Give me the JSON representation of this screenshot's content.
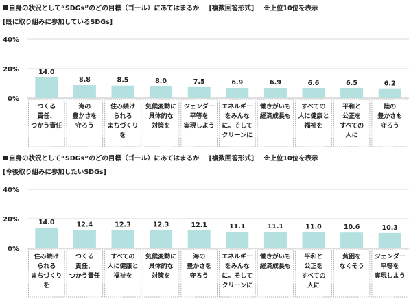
{
  "colors": {
    "bar": "#b5e0e0",
    "grid": "#d9d9d9",
    "box": "#9a9a9a"
  },
  "chart_data": [
    {
      "type": "bar",
      "title": "自身の状況として“SDGs”のどの目標（ゴール）にあてはまるか",
      "format": "[複数回答形式]",
      "note": "※上位10位を表示",
      "subtitle": "[既に取り組みに参加しているSDGs]",
      "ylim": [
        0,
        40
      ],
      "yticks": [
        "40%",
        "20%",
        "0%"
      ],
      "categories": [
        [
          "つくる",
          "責任、",
          "つかう責任"
        ],
        [
          "海の",
          "豊かさを",
          "守ろう"
        ],
        [
          "住み続け",
          "られる",
          "まちづくり",
          "を"
        ],
        [
          "気候変動に",
          "具体的な",
          "対策を"
        ],
        [
          "ジェンダー",
          "平等を",
          "実現しよう"
        ],
        [
          "エネルギー",
          "をみんな",
          "に。そして",
          "クリーンに"
        ],
        [
          "働きがいも",
          "経済成長も"
        ],
        [
          "すべての",
          "人に健康と",
          "福祉を"
        ],
        [
          "平和と",
          "公正を",
          "すべての",
          "人に"
        ],
        [
          "陸の",
          "豊かさも",
          "守ろう"
        ]
      ],
      "values": [
        14.0,
        8.8,
        8.5,
        8.0,
        7.5,
        6.9,
        6.9,
        6.6,
        6.5,
        6.2
      ],
      "labels": [
        "14.0",
        "8.8",
        "8.5",
        "8.0",
        "7.5",
        "6.9",
        "6.9",
        "6.6",
        "6.5",
        "6.2"
      ]
    },
    {
      "type": "bar",
      "title": "自身の状況として“SDGs”のどの目標（ゴール）にあてはまるか",
      "format": "[複数回答形式]",
      "note": "※上位10位を表示",
      "subtitle": "[今後取り組みに参加したいSDGs]",
      "ylim": [
        0,
        40
      ],
      "yticks": [
        "40%",
        "20%",
        "0%"
      ],
      "categories": [
        [
          "住み続け",
          "られる",
          "まちづくり",
          "を"
        ],
        [
          "つくる",
          "責任、",
          "つかう責任"
        ],
        [
          "すべての",
          "人に健康と",
          "福祉を"
        ],
        [
          "気候変動に",
          "具体的な",
          "対策を"
        ],
        [
          "海の",
          "豊かさを",
          "守ろう"
        ],
        [
          "エネルギー",
          "をみんな",
          "に。そして",
          "クリーンに"
        ],
        [
          "働きがいも",
          "経済成長も"
        ],
        [
          "平和と",
          "公正を",
          "すべての",
          "人に"
        ],
        [
          "貧困を",
          "なくそう"
        ],
        [
          "ジェンダー",
          "平等を",
          "実現しよう"
        ]
      ],
      "values": [
        14.0,
        12.4,
        12.3,
        12.3,
        12.1,
        11.1,
        11.1,
        11.0,
        10.6,
        10.3
      ],
      "labels": [
        "14.0",
        "12.4",
        "12.3",
        "12.3",
        "12.1",
        "11.1",
        "11.1",
        "11.0",
        "10.6",
        "10.3"
      ]
    }
  ]
}
